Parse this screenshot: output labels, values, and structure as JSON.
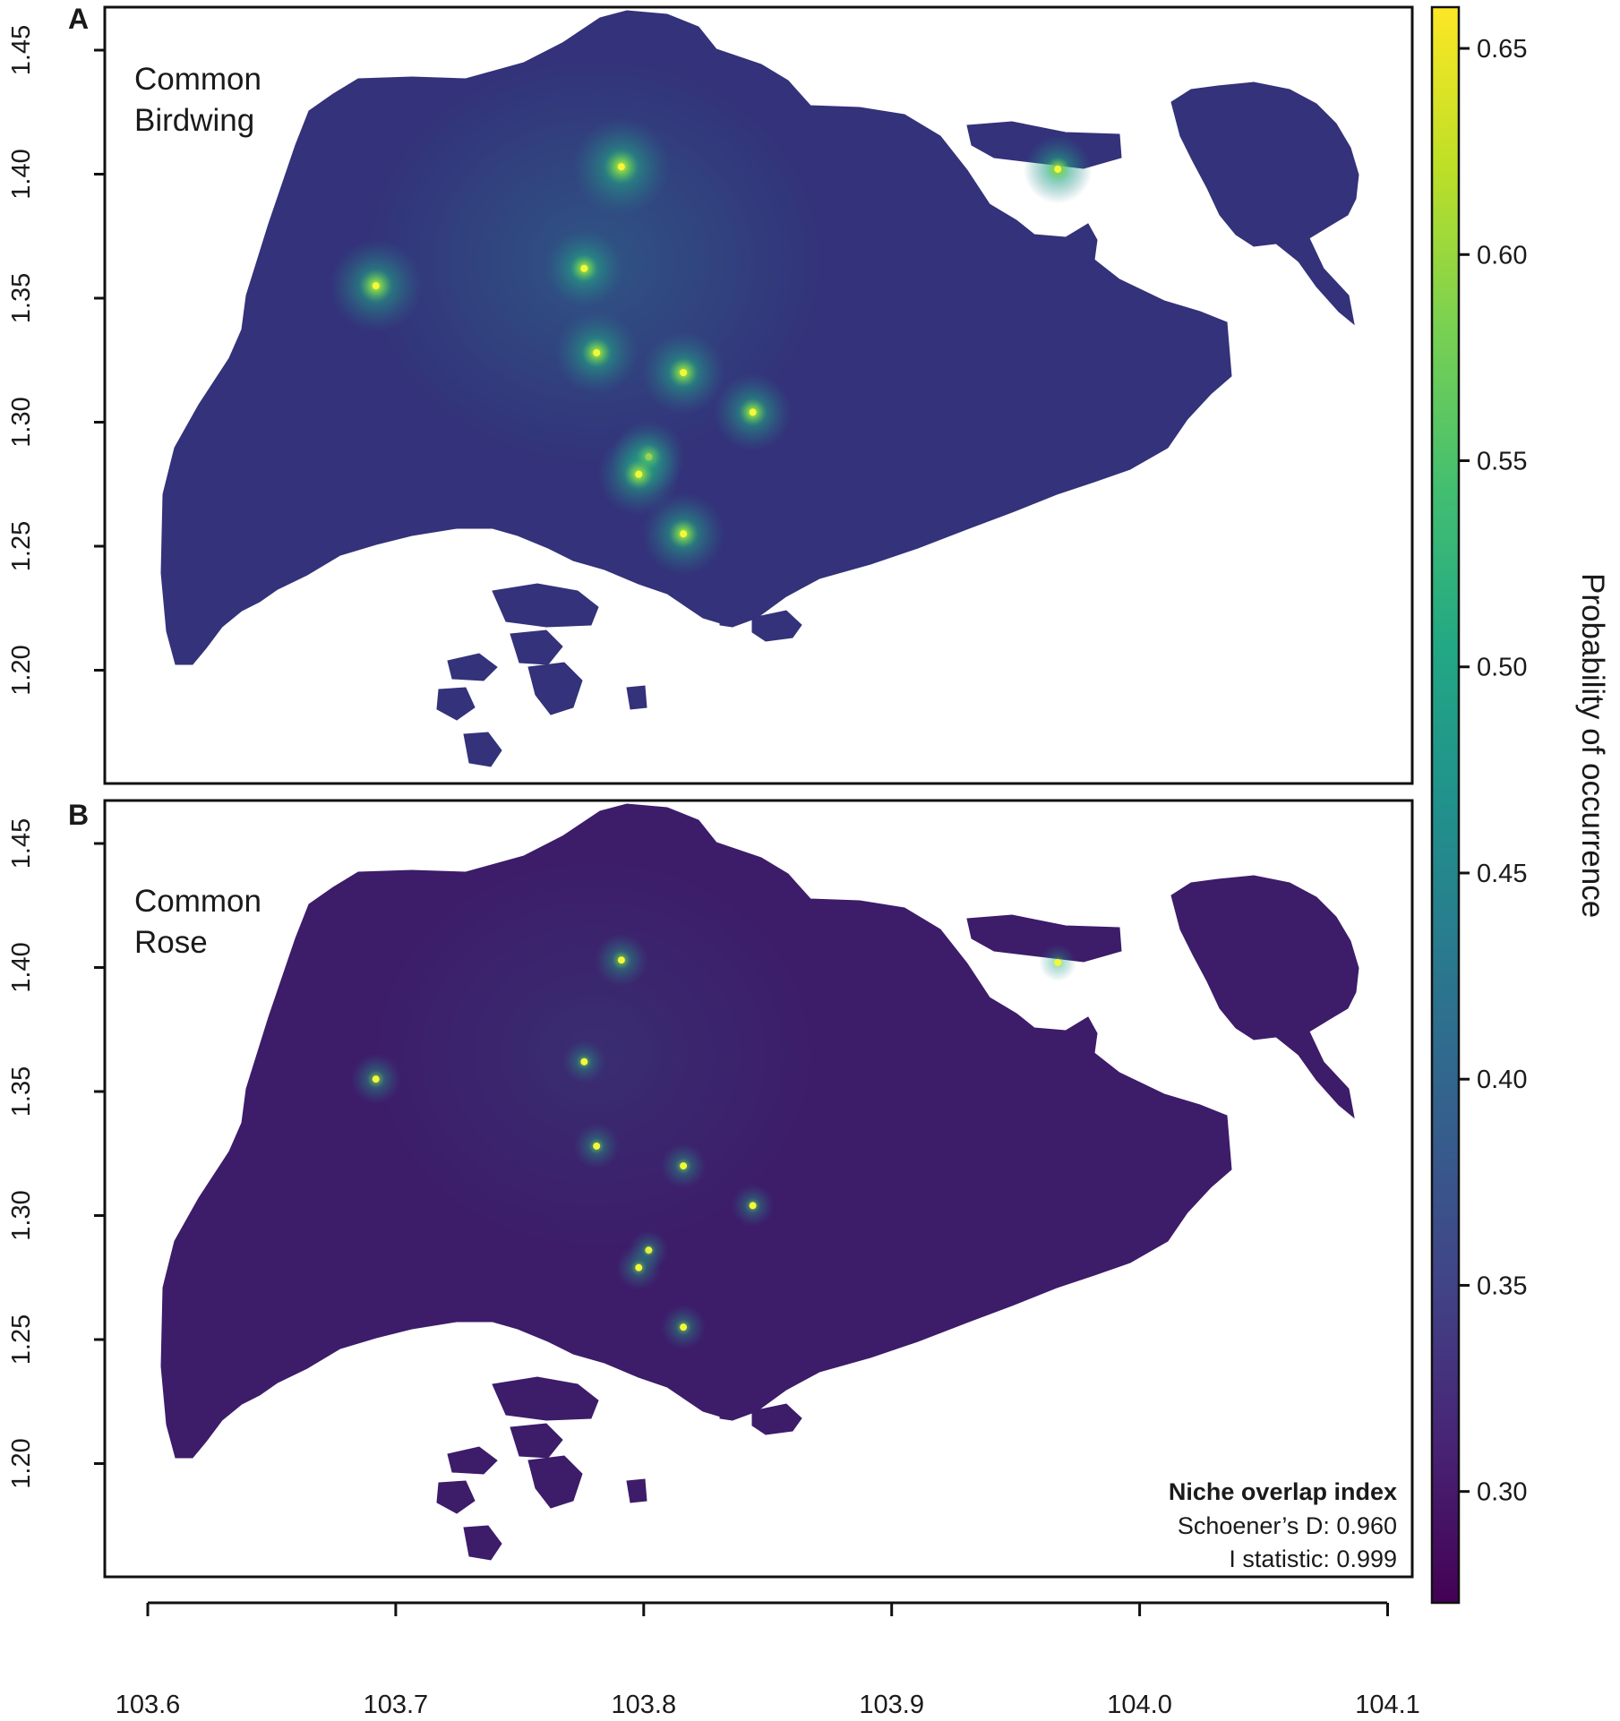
{
  "chart_data": {
    "type": "heatmap",
    "panels": [
      {
        "letter": "A",
        "species_lines": [
          "Common",
          "Birdwing"
        ],
        "intensity_scale": 1.0,
        "y_ticks": [
          "1.45",
          "1.40",
          "1.35",
          "1.30",
          "1.25",
          "1.20"
        ]
      },
      {
        "letter": "B",
        "species_lines": [
          "Common",
          "Rose"
        ],
        "intensity_scale": 0.4,
        "y_ticks": [
          "1.45",
          "1.40",
          "1.35",
          "1.30",
          "1.25",
          "1.20"
        ],
        "overlap_box": {
          "title": "Niche overlap index",
          "schoener": "Schoener’s D: 0.960",
          "i_statistic": "I statistic: 0.999"
        }
      }
    ],
    "x_ticks": [
      "103.6",
      "103.7",
      "103.8",
      "103.9",
      "104.0",
      "104.1"
    ],
    "x_range": [
      103.583,
      104.103
    ],
    "y_range": [
      1.155,
      1.468
    ],
    "y_tick_values": [
      1.45,
      1.4,
      1.35,
      1.3,
      1.25,
      1.2
    ],
    "x_tick_values": [
      103.6,
      103.7,
      103.8,
      103.9,
      104.0,
      104.1
    ],
    "hotspots": [
      {
        "lon": 103.791,
        "lat": 1.403,
        "strength": 1.0
      },
      {
        "lon": 103.692,
        "lat": 1.355,
        "strength": 0.95
      },
      {
        "lon": 103.776,
        "lat": 1.362,
        "strength": 0.8
      },
      {
        "lon": 103.781,
        "lat": 1.328,
        "strength": 0.85
      },
      {
        "lon": 103.816,
        "lat": 1.32,
        "strength": 0.85
      },
      {
        "lon": 103.844,
        "lat": 1.304,
        "strength": 0.8
      },
      {
        "lon": 103.802,
        "lat": 1.286,
        "strength": 0.75
      },
      {
        "lon": 103.798,
        "lat": 1.279,
        "strength": 0.85
      },
      {
        "lon": 103.816,
        "lat": 1.255,
        "strength": 0.85
      },
      {
        "lon": 103.967,
        "lat": 1.402,
        "strength": 0.7
      }
    ],
    "colorbar": {
      "title": "Probability of occurrence",
      "ticks": [
        "0.65",
        "0.60",
        "0.55",
        "0.50",
        "0.45",
        "0.40",
        "0.35",
        "0.30"
      ],
      "tick_values": [
        0.65,
        0.6,
        0.55,
        0.5,
        0.45,
        0.4,
        0.35,
        0.3
      ],
      "range": [
        0.273,
        0.66
      ],
      "colormap": "viridis"
    },
    "colors": {
      "base_fill": "#33327a",
      "dark": "#440154",
      "mid": "#21918c",
      "bright": "#fde725"
    }
  }
}
